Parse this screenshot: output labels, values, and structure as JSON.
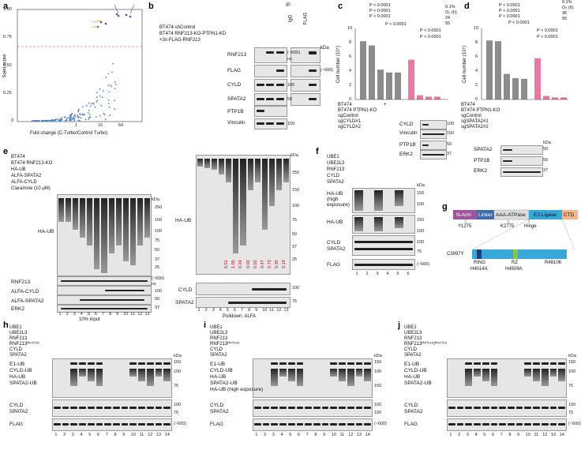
{
  "panel_labels": [
    "a",
    "b",
    "c",
    "d",
    "e",
    "f",
    "g",
    "h",
    "i",
    "j"
  ],
  "a": {
    "ylabel": "Saint score",
    "xlabel": "Fold change (C-Turbo/Control Turbo)",
    "yticks": [
      "1.00",
      "0.75",
      "0.50",
      "0.25",
      "0"
    ],
    "xticks": [
      "1",
      "16",
      "64"
    ]
  },
  "b": {
    "rows": [
      "BT474-shControl",
      "BT474 RNF213-KO-PTPN1-KD",
      "+3x-FLAG-RNF213"
    ],
    "ip": "IP:",
    "ip_cols": [
      "IgG",
      "FLAG"
    ],
    "blots": [
      "RNF213",
      "FLAG",
      "CYLD",
      "SPATA2",
      "PTP1B",
      "Vinculin"
    ],
    "kda": "kDa",
    "marks": [
      "(~600)",
      "ns",
      "(~600)",
      "100",
      "50",
      "150"
    ]
  },
  "c": {
    "ylabel": "Cell number (10⁵)",
    "legend_title": "0.1%",
    "legend": [
      "O₂ (h)",
      "24",
      "55"
    ],
    "pvals": [
      "P < 0.0001",
      "P < 0.0001",
      "P < 0.0001",
      "P < 0.0001",
      "P < 0.0001",
      "P < 0.0001"
    ],
    "yticks": [
      "0",
      "2",
      "4",
      "6",
      "8",
      "10"
    ],
    "rows": [
      "BT474",
      "BT474 PTPN1-KO",
      "sgControl",
      "sgCYLD#1",
      "sgCYLD#2"
    ],
    "marks": [
      "+",
      "+",
      "-",
      "-",
      "+",
      "+",
      "+",
      "-",
      "-",
      "-"
    ]
  },
  "d": {
    "ylabel": "Cell number (10⁵)",
    "legend_title": "0.1%",
    "legend": [
      "O₂ (h)",
      "36",
      "55"
    ],
    "pvals": [
      "P < 0.0001",
      "P < 0.0001",
      "P < 0.0001",
      "P < 0.0001",
      "P < 0.0001",
      "P < 0.0001"
    ],
    "yticks": [
      "0",
      "2",
      "4",
      "6",
      "8",
      "10"
    ],
    "rows": [
      "BT474",
      "BT474 PTPN1-KO",
      "sgControl",
      "sgSPATA2#1",
      "sgSPATA2#2"
    ],
    "blots": [
      "SPATA2",
      "PTP1B",
      "ERK2"
    ],
    "marks": [
      "kDa",
      "50",
      "50",
      "37"
    ]
  },
  "c_side": {
    "blots": [
      "CYLD",
      "Vinculin",
      "PTP1B",
      "ERK2"
    ],
    "marks": [
      "100",
      "150",
      "50",
      "37"
    ]
  },
  "e": {
    "rows": [
      "BT474",
      "BT474 RNF213-KO",
      "HA-UB",
      "ALFA-SPATA2",
      "ALFA-CYLD",
      "Claramine (10 μM)"
    ],
    "blots": [
      "HA-UB",
      "RNF213",
      "ALFA-CYLD",
      "ALFA-SPATA2",
      "ERK2"
    ],
    "marks": [
      "kDa",
      "250",
      "150",
      "100",
      "75",
      "50",
      "37",
      "25",
      "(~600)",
      "ns",
      "100",
      "50",
      "37"
    ],
    "lanes": [
      "1",
      "2",
      "3",
      "4",
      "5",
      "6",
      "7",
      "8",
      "9",
      "10",
      "11",
      "12",
      "13"
    ],
    "footer": "10% input",
    "pulldown_blots": [
      "HA-UB",
      "CYLD",
      "SPATA2"
    ],
    "pulldown_marks": [
      "kDa",
      "250",
      "150",
      "100",
      "75",
      "50",
      "37",
      "25",
      "100",
      "75"
    ],
    "pulldown_footer": "Pulldown: ALFA",
    "red_values": [
      "0.51",
      "1.00",
      "0.24",
      "0.02",
      "0.02",
      "0.47",
      "0.73",
      "0.39",
      "0.19"
    ]
  },
  "f": {
    "rows": [
      "UBE1",
      "UBE2L3",
      "RNF213",
      "CYLD",
      "SPATA2"
    ],
    "blots": [
      "HA-UB (high exposure)",
      "HA-UB",
      "CYLD",
      "SPATA2",
      "FLAG"
    ],
    "marks": [
      "kDa",
      "150",
      "100",
      "150",
      "100",
      "100",
      "75",
      "(~600)"
    ],
    "lanes": [
      "1",
      "2",
      "3",
      "4",
      "5",
      "6"
    ]
  },
  "g": {
    "domains": [
      "N-Arm",
      "Linker",
      "AAA-ATPase",
      "E3 Ligase",
      "CTD"
    ],
    "sites_top": [
      "Y1275",
      "K2775",
      "Hinge"
    ],
    "sites_bottom": [
      "C3997Y",
      "RING",
      "RZ",
      "R4810K",
      "H4014A",
      "H4509A"
    ]
  },
  "h": {
    "rows": [
      "UBE1",
      "UBE2L3",
      "RNF213",
      "RNF213ᴴ⁴⁵⁰⁹ᴬ",
      "CYLD",
      "SPATA2"
    ],
    "blots": [
      "E1-UB",
      "CYLD-UB",
      "HA-UB",
      "SPATA2-UB",
      "CYLD",
      "SPATA2",
      "FLAG"
    ],
    "marks": [
      "kDa",
      "150",
      "100",
      "75",
      "100",
      "75",
      "(~600)"
    ],
    "lanes": [
      "1",
      "2",
      "3",
      "4",
      "5",
      "6",
      "7",
      "8",
      "9",
      "10",
      "11",
      "12",
      "13",
      "14"
    ]
  },
  "i": {
    "rows": [
      "UBE1",
      "UBE2L3",
      "RNF213",
      "RNF213ᴴ⁴⁰¹⁴ᴬ",
      "CYLD",
      "SPATA2"
    ],
    "blots": [
      "E1-UB",
      "CYLD-UB",
      "HA-UB",
      "SPATA2-UB",
      "HA-UB (high exposure)",
      "CYLD",
      "SPATA2",
      "FLAG"
    ],
    "marks": [
      "kDa",
      "150",
      "100",
      "150",
      "100",
      "100",
      "(~600)"
    ],
    "lanes": [
      "1",
      "2",
      "3",
      "4",
      "5",
      "6",
      "7",
      "8",
      "9",
      "10",
      "11",
      "12",
      "13",
      "14"
    ]
  },
  "j": {
    "rows": [
      "UBE1",
      "UBE2L3",
      "RNF213",
      "RNF213ᴴ⁴⁰¹⁴ᴬ/ᴴ⁴⁵⁰⁹ᴬ",
      "CYLD",
      "SPATA2"
    ],
    "blots": [
      "E1-UB",
      "CYLD-UB",
      "HA-UB",
      "SPATA2-UB",
      "CYLD",
      "SPATA2",
      "FLAG"
    ],
    "marks": [
      "kDa",
      "150",
      "100",
      "75",
      "100",
      "75",
      "(~600)"
    ],
    "lanes": [
      "1",
      "2",
      "3",
      "4",
      "5",
      "6",
      "7",
      "8",
      "9",
      "10",
      "11",
      "12",
      "13",
      "14"
    ]
  },
  "colors": {
    "accent_pink": "#e77aa3",
    "bar_grey": "#8c8c8c",
    "scatter_blue": "#4a7fc1",
    "sig_red": "#d0021b"
  }
}
